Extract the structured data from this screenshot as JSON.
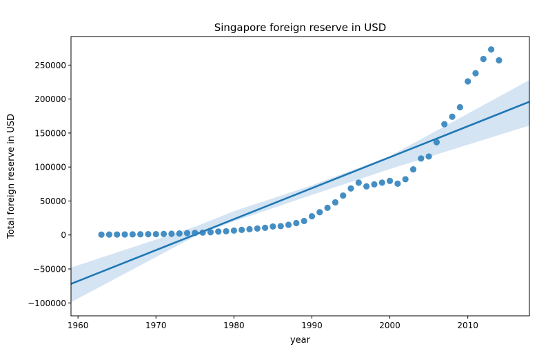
{
  "chart_data": {
    "type": "scatter",
    "title": "Singapore foreign reserve in USD",
    "xlabel": "year",
    "ylabel": "Total foreign reserve in USD",
    "xlim": [
      1959.1,
      2017.9
    ],
    "ylim": [
      -119000,
      292000
    ],
    "x_ticks": [
      1960,
      1970,
      1980,
      1990,
      2000,
      2010
    ],
    "y_ticks": [
      -100000,
      -50000,
      0,
      50000,
      100000,
      150000,
      200000,
      250000
    ],
    "grid": false,
    "colors": {
      "points": "#3182bd",
      "line": "#1f77b4",
      "band": "#c6dbef"
    },
    "series": [
      {
        "x": [
          1963,
          1964,
          1965,
          1966,
          1967,
          1968,
          1969,
          1970,
          1971,
          1972,
          1973,
          1974,
          1975,
          1976,
          1977,
          1978,
          1979,
          1980,
          1981,
          1982,
          1983,
          1984,
          1985,
          1986,
          1987,
          1988,
          1989,
          1990,
          1991,
          1992,
          1993,
          1994,
          1995,
          1996,
          1997,
          1998,
          1999,
          2000,
          2001,
          2002,
          2003,
          2004,
          2005,
          2006,
          2007,
          2008,
          2009,
          2010,
          2011,
          2012,
          2013,
          2014
        ],
        "y": [
          500,
          600,
          700,
          800,
          900,
          1000,
          1100,
          1200,
          1500,
          1800,
          2200,
          2700,
          3000,
          3500,
          4000,
          5000,
          5500,
          6500,
          7500,
          8500,
          9500,
          10500,
          12500,
          13000,
          15000,
          17500,
          20500,
          27500,
          33500,
          40000,
          48000,
          58000,
          68500,
          77000,
          71500,
          74500,
          77000,
          79500,
          75500,
          82000,
          96500,
          112500,
          115500,
          136500,
          163000,
          174000,
          188000,
          226000,
          238000,
          259000,
          273000,
          257000
        ]
      }
    ],
    "regression": {
      "x": [
        1959.1,
        2017.9
      ],
      "y": [
        -72000,
        196000
      ]
    },
    "confidence_band": {
      "x": [
        1959.1,
        1975,
        1980,
        1990,
        2000,
        2017.9
      ],
      "lower": [
        -99000,
        -2000,
        20000,
        59000,
        97000,
        161000
      ],
      "upper": [
        -48000,
        12000,
        35000,
        73000,
        116000,
        228000
      ]
    }
  }
}
